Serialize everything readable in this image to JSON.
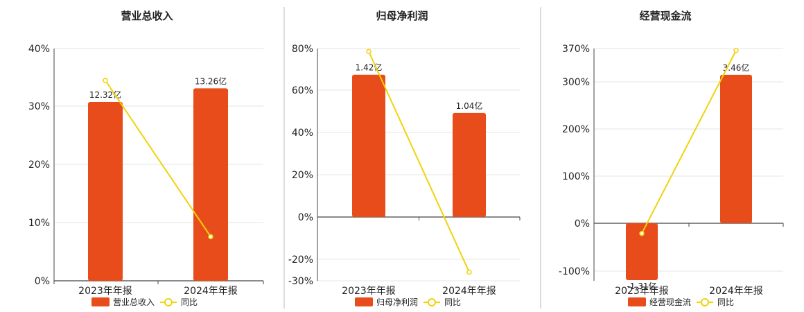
{
  "legend_line_label": "同比",
  "colors": {
    "bar": "#E84C1B",
    "line": "#F2D20A",
    "grid": "#e6e6e6",
    "axis": "#444444",
    "divider": "#bbbbbb"
  },
  "chart_data": [
    {
      "type": "bar",
      "title": "营业总收入",
      "categories": [
        "2023年年报",
        "2024年年报"
      ],
      "series": [
        {
          "name": "营业总收入",
          "type": "bar",
          "values": [
            12.32,
            13.26
          ],
          "labels": [
            "12.32亿",
            "13.26亿"
          ],
          "unit": "亿"
        },
        {
          "name": "同比",
          "type": "line",
          "values": [
            34.5,
            7.6
          ],
          "unit": "%"
        }
      ],
      "yticks": [
        "0%",
        "10%",
        "20%",
        "30%",
        "40%"
      ],
      "bar_axis_ticks": [
        0,
        4,
        8,
        12,
        16
      ],
      "line_axis_ticks": [
        0,
        10,
        20,
        30,
        40
      ],
      "legend_position": "bottom-center",
      "grid": true
    },
    {
      "type": "bar",
      "title": "归母净利润",
      "categories": [
        "2023年年报",
        "2024年年报"
      ],
      "series": [
        {
          "name": "归母净利润",
          "type": "bar",
          "values": [
            1.42,
            1.04
          ],
          "labels": [
            "1.42亿",
            "1.04亿"
          ],
          "unit": "亿"
        },
        {
          "name": "同比",
          "type": "line",
          "values": [
            78.6,
            -25.9
          ],
          "unit": "%"
        }
      ],
      "yticks": [
        "-30%",
        "-20%",
        "0%",
        "20%",
        "40%",
        "60%",
        "80%"
      ],
      "bar_axis_ticks": [
        -0.63,
        -0.42,
        0,
        0.42,
        0.84,
        1.26,
        1.68
      ],
      "line_axis_ticks": [
        -30,
        -20,
        0,
        20,
        40,
        60,
        80
      ],
      "legend_position": "bottom-center",
      "grid": true
    },
    {
      "type": "bar",
      "title": "经营现金流",
      "categories": [
        "2023年年报",
        "2024年年报"
      ],
      "series": [
        {
          "name": "经营现金流",
          "type": "bar",
          "values": [
            -1.31,
            3.46
          ],
          "labels": [
            "-1.31亿",
            "3.46亿"
          ],
          "unit": "亿"
        },
        {
          "name": "同比",
          "type": "line",
          "values": [
            -20.5,
            366.0
          ],
          "unit": "%"
        }
      ],
      "yticks": [
        "-100%",
        "0%",
        "100%",
        "200%",
        "300%",
        "370%"
      ],
      "bar_axis_ticks": [
        -1.1,
        0,
        1.1,
        2.2,
        3.3,
        4.07
      ],
      "line_axis_ticks": [
        -100,
        0,
        100,
        200,
        300,
        370
      ],
      "legend_position": "bottom-center",
      "grid": true
    }
  ]
}
